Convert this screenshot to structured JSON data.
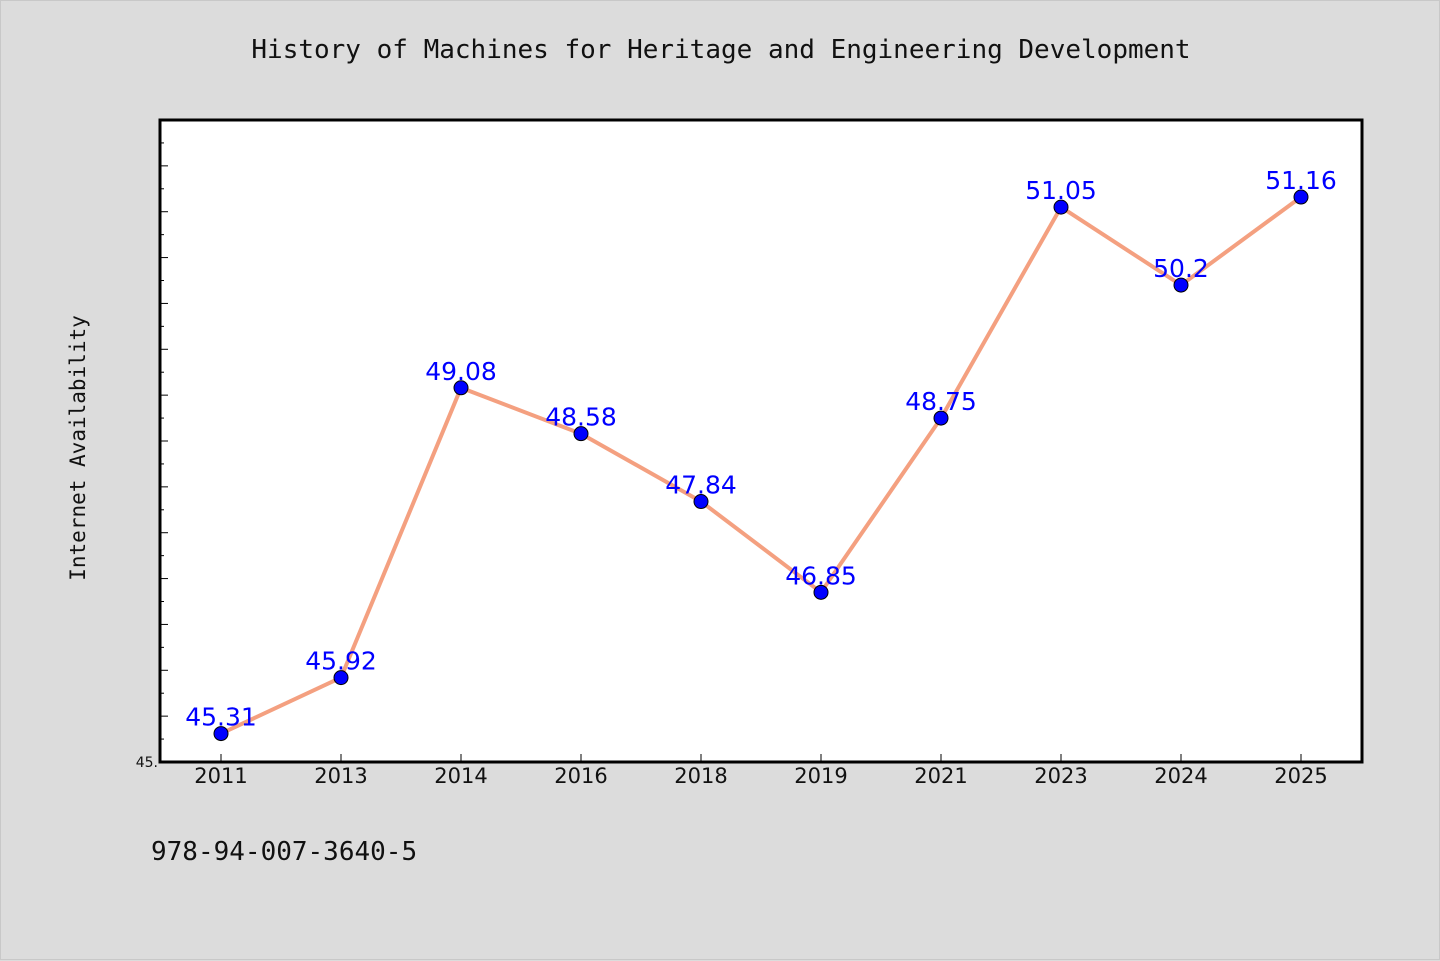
{
  "chart_data": {
    "type": "line",
    "title": "History of Machines for Heritage and Engineering Development",
    "ylabel": "Internet Availability",
    "xlabel": "",
    "categories": [
      "2011",
      "2013",
      "2014",
      "2016",
      "2018",
      "2019",
      "2021",
      "2023",
      "2024",
      "2025"
    ],
    "series": [
      {
        "values": [
          45.31,
          45.92,
          49.08,
          48.58,
          47.84,
          46.85,
          48.75,
          51.05,
          50.2,
          51.16
        ],
        "labels": [
          "45.31",
          "45.92",
          "49.08",
          "48.58",
          "47.84",
          "46.85",
          "48.75",
          "51.05",
          "50.2",
          "51.16"
        ],
        "line_color": "#f4a080",
        "marker_color": "#0000ff"
      }
    ],
    "ylim": [
      45.0,
      52.0
    ],
    "y_min_label": "45.",
    "grid": false,
    "legend": "none"
  },
  "footer": {
    "code": "978-94-007-3640-5"
  },
  "colors": {
    "background": "#dcdcdc",
    "plot_area": "#ffffff",
    "data_label": "#0000ff"
  }
}
